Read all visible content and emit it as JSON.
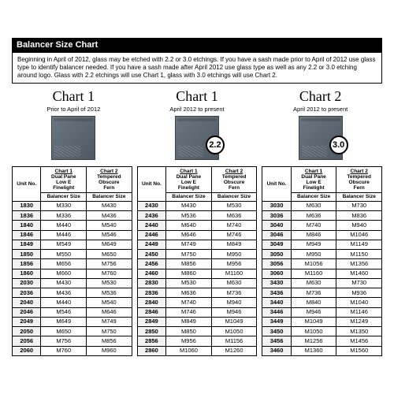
{
  "header": "Balancer Size Chart",
  "intro": "Beginning in April of 2012, glass may be etched with 2.2 or 3.0 etchings.  If you have a sash made prior to April of 2012 use glass type to identify balancer needed.  If you have a sash made after April 2012 use glass type as well as any 2.2 or 3.0 etching around logo. Glass with 2.2 etchings will use Chart 1, glass with 3.0 etchings will use Chart 2.",
  "charts": [
    {
      "title": "Chart 1",
      "subtitle": "Prior to April of 2012",
      "badge": ""
    },
    {
      "title": "Chart 1",
      "subtitle": "April 2012 to present",
      "badge": "2.2"
    },
    {
      "title": "Chart 2",
      "subtitle": "April 2012 to present",
      "badge": "3.0"
    }
  ],
  "colHeaders": {
    "chart1_line1": "Chart 1",
    "chart1_line2": "Dual Pane",
    "chart1_line3": "Low E",
    "chart1_line4": "Finelight",
    "chart2_line1": "Chart 2",
    "chart2_line2": "Tempered",
    "chart2_line3": "Obscure",
    "chart2_line4": "Fern",
    "unit": "Unit No.",
    "bal": "Balancer Size"
  },
  "tables": [
    {
      "rows": [
        [
          "1830",
          "M330",
          "M430"
        ],
        [
          "1836",
          "M336",
          "M436"
        ],
        [
          "1840",
          "M440",
          "M540"
        ],
        [
          "1846",
          "M446",
          "M546"
        ],
        [
          "1849",
          "M549",
          "M649"
        ],
        [
          "1850",
          "M550",
          "M650"
        ],
        [
          "1856",
          "M656",
          "M756"
        ],
        [
          "1860",
          "M660",
          "M760"
        ],
        [
          "2030",
          "M430",
          "M530"
        ],
        [
          "2036",
          "M436",
          "M536"
        ],
        [
          "2040",
          "M440",
          "M540"
        ],
        [
          "2046",
          "M546",
          "M646"
        ],
        [
          "2049",
          "M649",
          "M749"
        ],
        [
          "2050",
          "M650",
          "M750"
        ],
        [
          "2056",
          "M756",
          "M856"
        ],
        [
          "2060",
          "M760",
          "M960"
        ]
      ]
    },
    {
      "rows": [
        [
          "2430",
          "M430",
          "M530"
        ],
        [
          "2436",
          "M536",
          "M636"
        ],
        [
          "2440",
          "M640",
          "M740"
        ],
        [
          "2446",
          "M646",
          "M746"
        ],
        [
          "2449",
          "M749",
          "M849"
        ],
        [
          "2450",
          "M750",
          "M950"
        ],
        [
          "2456",
          "M856",
          "M956"
        ],
        [
          "2460",
          "M860",
          "M1160"
        ],
        [
          "2830",
          "M530",
          "M630"
        ],
        [
          "2836",
          "M636",
          "M736"
        ],
        [
          "2840",
          "M740",
          "M940"
        ],
        [
          "2846",
          "M746",
          "M946"
        ],
        [
          "2849",
          "M849",
          "M1049"
        ],
        [
          "2850",
          "M850",
          "M1050"
        ],
        [
          "2856",
          "M956",
          "M1156"
        ],
        [
          "2860",
          "M1060",
          "M1260"
        ]
      ]
    },
    {
      "rows": [
        [
          "3030",
          "M630",
          "M730"
        ],
        [
          "3036",
          "M636",
          "M836"
        ],
        [
          "3040",
          "M740",
          "M940"
        ],
        [
          "3046",
          "M846",
          "M1046"
        ],
        [
          "3049",
          "M949",
          "M1149"
        ],
        [
          "3050",
          "M950",
          "M1150"
        ],
        [
          "3056",
          "M1056",
          "M1356"
        ],
        [
          "3060",
          "M1160",
          "M1460"
        ],
        [
          "3430",
          "M630",
          "M730"
        ],
        [
          "3436",
          "M736",
          "M936"
        ],
        [
          "3440",
          "M840",
          "M1040"
        ],
        [
          "3446",
          "M946",
          "M1146"
        ],
        [
          "3449",
          "M1049",
          "M1249"
        ],
        [
          "3450",
          "M1050",
          "M1350"
        ],
        [
          "3456",
          "M1256",
          "M1456"
        ],
        [
          "3460",
          "M1360",
          "M1560"
        ]
      ]
    }
  ],
  "style": {
    "tile_bg_start": "#6b7781",
    "tile_bg_end": "#4e5962",
    "header_bg": "#000000",
    "header_fg": "#ffffff",
    "unit_bg": "#f2f2f2",
    "border": "#000000"
  }
}
